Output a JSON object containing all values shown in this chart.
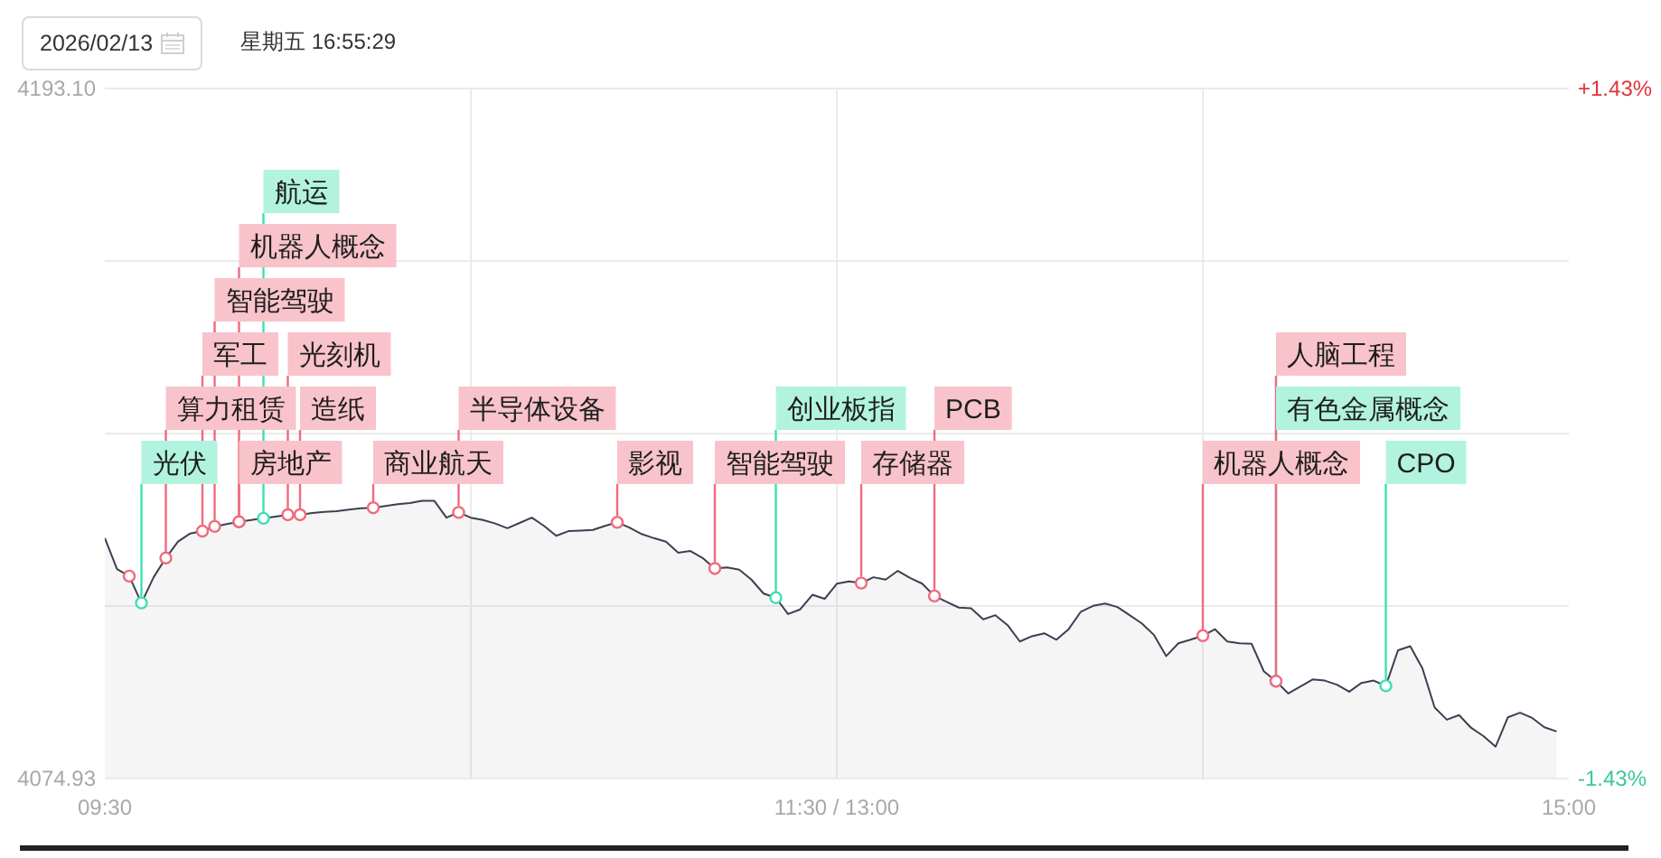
{
  "chart_data": {
    "type": "area",
    "annotations": [
      "2026/02/13",
      "星期五 16:55:29"
    ],
    "categories": [
      "09:30",
      null,
      null,
      null,
      null,
      null,
      null,
      null,
      null,
      null,
      null,
      null,
      null,
      null,
      null,
      null,
      null,
      null,
      null,
      null,
      null,
      null,
      null,
      null,
      null,
      null,
      null,
      null,
      null,
      null,
      null,
      null,
      null,
      null,
      null,
      null,
      null,
      null,
      null,
      null,
      null,
      null,
      null,
      null,
      null,
      null,
      null,
      null,
      null,
      null,
      null,
      null,
      null,
      null,
      null,
      null,
      null,
      null,
      null,
      null,
      "11:30 / 13:00",
      null,
      null,
      null,
      null,
      null,
      null,
      null,
      null,
      null,
      null,
      null,
      null,
      null,
      null,
      null,
      null,
      null,
      null,
      null,
      null,
      null,
      null,
      null,
      null,
      null,
      null,
      null,
      null,
      null,
      null,
      null,
      null,
      null,
      null,
      null,
      null,
      null,
      null,
      null,
      null,
      null,
      null,
      null,
      null,
      null,
      null,
      null,
      null,
      null,
      null,
      null,
      null,
      null,
      null,
      null,
      null,
      null,
      null,
      null,
      "15:00"
    ],
    "ylim": [
      4074.93,
      4193.1
    ],
    "yticks": [
      {
        "value": 4074.93,
        "label": "4074.93"
      },
      {
        "value": 4104.47,
        "label": null
      },
      {
        "value": 4134.02,
        "label": null
      },
      {
        "value": 4163.56,
        "label": null
      },
      {
        "value": 4193.1,
        "label": "4193.10"
      }
    ],
    "y2lim": [
      -1.43,
      1.43
    ],
    "y2ticks": [
      {
        "value": -1.43,
        "label": "-1.43%"
      },
      {
        "value": 1.43,
        "label": "+1.43%"
      }
    ],
    "grid": true,
    "series": [
      {
        "color": "#3b4050",
        "values": [
          4116.1,
          4110.8,
          4109.6,
          4105.0,
          4109.4,
          4112.7,
          4115.5,
          4116.9,
          4117.3,
          4118.1,
          4118.5,
          4118.9,
          4119.2,
          4119.5,
          4119.8,
          4120.1,
          4120.1,
          4120.4,
          4120.6,
          4120.7,
          4121.0,
          4121.2,
          4121.3,
          4121.6,
          4121.9,
          4122.1,
          4122.5,
          4122.5,
          4119.6,
          4120.5,
          4119.6,
          4119.2,
          4118.6,
          4117.8,
          4118.7,
          4119.6,
          4118.2,
          4116.5,
          4117.3,
          4117.4,
          4117.5,
          4118.2,
          4118.8,
          4117.9,
          4116.8,
          4116.1,
          4115.5,
          4113.6,
          4113.9,
          4112.7,
          4110.9,
          4111.1,
          4110.7,
          4109.0,
          4106.6,
          4105.9,
          4103.1,
          4103.9,
          4106.4,
          4105.7,
          4108.3,
          4108.7,
          4108.4,
          4109.4,
          4109.0,
          4110.5,
          4109.3,
          4108.3,
          4106.2,
          4105.2,
          4104.2,
          4104.1,
          4102.2,
          4102.9,
          4101.2,
          4098.4,
          4099.3,
          4099.8,
          4098.7,
          4100.5,
          4103.5,
          4104.5,
          4104.9,
          4104.3,
          4102.9,
          4101.5,
          4099.5,
          4095.9,
          4098.1,
          4098.7,
          4099.4,
          4100.5,
          4098.4,
          4098.1,
          4098.0,
          4093.3,
          4091.6,
          4089.5,
          4090.7,
          4091.9,
          4091.7,
          4091.0,
          4089.8,
          4091.3,
          4091.7,
          4090.8,
          4096.9,
          4097.6,
          4093.8,
          4087.1,
          4085.0,
          4085.8,
          4083.6,
          4082.2,
          4080.4,
          4085.4,
          4086.2,
          4085.3,
          4083.7,
          4083.0,
          null
        ]
      },
      {
        "type": "scatter",
        "color": "#3ee0b0",
        "marker": "circle",
        "values": [
          null,
          null,
          null,
          4105.0,
          null,
          null,
          null,
          null,
          null,
          null,
          null,
          null,
          null,
          4119.5,
          null,
          null,
          null,
          null,
          null,
          null,
          null,
          null,
          null,
          null,
          null,
          null,
          null,
          null,
          null,
          null,
          null,
          null,
          null,
          null,
          null,
          null,
          null,
          null,
          null,
          null,
          null,
          null,
          null,
          null,
          null,
          null,
          null,
          null,
          null,
          null,
          null,
          null,
          null,
          null,
          null,
          4105.9,
          null,
          null,
          null,
          null,
          null,
          null,
          null,
          null,
          null,
          null,
          null,
          null,
          null,
          null,
          null,
          null,
          null,
          null,
          null,
          null,
          null,
          null,
          null,
          null,
          null,
          null,
          null,
          null,
          null,
          null,
          null,
          null,
          null,
          null,
          null,
          null,
          null,
          null,
          null,
          null,
          4091.6,
          null,
          null,
          null,
          null,
          null,
          null,
          null,
          null,
          4090.8,
          null,
          null,
          null,
          null,
          null,
          null,
          null,
          null,
          null,
          null,
          null,
          null,
          null,
          null,
          null
        ],
        "value_labels": [
          null,
          null,
          null,
          "光伏",
          null,
          null,
          null,
          null,
          null,
          null,
          null,
          null,
          null,
          "航运",
          null,
          null,
          null,
          null,
          null,
          null,
          null,
          null,
          null,
          null,
          null,
          null,
          null,
          null,
          null,
          null,
          null,
          null,
          null,
          null,
          null,
          null,
          null,
          null,
          null,
          null,
          null,
          null,
          null,
          null,
          null,
          null,
          null,
          null,
          null,
          null,
          null,
          null,
          null,
          null,
          null,
          "创业板指",
          null,
          null,
          null,
          null,
          null,
          null,
          null,
          null,
          null,
          null,
          null,
          null,
          null,
          null,
          null,
          null,
          null,
          null,
          null,
          null,
          null,
          null,
          null,
          null,
          null,
          null,
          null,
          null,
          null,
          null,
          null,
          null,
          null,
          null,
          null,
          null,
          null,
          null,
          null,
          null,
          "有色金属概念",
          null,
          null,
          null,
          null,
          null,
          null,
          null,
          null,
          "CPO",
          null,
          null,
          null,
          null,
          null,
          null,
          null,
          null,
          null,
          null,
          null,
          null,
          null,
          null,
          null
        ]
      },
      {
        "type": "scatter",
        "color": "#f06a7c",
        "marker": "circle",
        "values": [
          null,
          null,
          4109.6,
          null,
          null,
          4112.7,
          null,
          null,
          4117.3,
          4118.1,
          null,
          4118.9,
          null,
          null,
          null,
          4120.1,
          4120.1,
          null,
          null,
          null,
          null,
          null,
          4121.3,
          null,
          null,
          null,
          null,
          null,
          null,
          4120.5,
          null,
          null,
          null,
          null,
          null,
          null,
          null,
          null,
          null,
          null,
          null,
          null,
          4118.8,
          null,
          null,
          null,
          null,
          null,
          null,
          null,
          4110.9,
          null,
          null,
          null,
          null,
          null,
          null,
          null,
          null,
          null,
          null,
          null,
          4108.4,
          null,
          null,
          null,
          null,
          null,
          4106.2,
          null,
          null,
          null,
          null,
          null,
          null,
          null,
          null,
          null,
          null,
          null,
          null,
          null,
          null,
          null,
          null,
          null,
          null,
          null,
          null,
          null,
          4099.4,
          null,
          null,
          null,
          null,
          null,
          4091.6,
          null,
          null,
          null,
          null,
          null,
          null,
          null,
          null,
          null,
          null,
          null,
          null,
          null,
          null,
          null,
          null,
          null,
          null,
          null,
          null,
          null,
          null,
          null,
          null
        ],
        "value_labels": [
          null,
          null,
          null,
          null,
          null,
          "算力租赁",
          null,
          null,
          "军工",
          "智能驾驶",
          null,
          "房地产",
          null,
          null,
          null,
          "光刻机",
          "造纸",
          null,
          null,
          null,
          null,
          null,
          "商业航天",
          null,
          null,
          null,
          null,
          null,
          null,
          "半导体设备",
          null,
          null,
          null,
          null,
          null,
          null,
          null,
          null,
          null,
          null,
          null,
          null,
          "影视",
          null,
          null,
          null,
          null,
          null,
          null,
          null,
          "智能驾驶",
          null,
          null,
          null,
          null,
          null,
          null,
          null,
          null,
          null,
          null,
          null,
          "存储器",
          null,
          null,
          null,
          null,
          null,
          "PCB",
          null,
          null,
          null,
          null,
          null,
          null,
          null,
          null,
          null,
          null,
          null,
          null,
          null,
          null,
          null,
          null,
          null,
          null,
          null,
          null,
          null,
          "机器人概念",
          null,
          null,
          null,
          null,
          null,
          "人脑工程",
          null,
          null,
          null,
          null,
          null,
          null,
          null,
          null,
          null,
          null,
          null,
          null,
          null,
          null,
          null,
          null,
          null,
          null,
          null,
          null,
          null,
          null,
          null,
          null
        ]
      },
      {
        "type": "scatter",
        "color": "#f06a7c",
        "marker": "circle",
        "values": [
          null,
          null,
          null,
          null,
          null,
          null,
          null,
          null,
          null,
          null,
          null,
          4118.9,
          null,
          null,
          null,
          null,
          null,
          null,
          null,
          null,
          null,
          null,
          null,
          null,
          null,
          null,
          null,
          null,
          null,
          null,
          null,
          null,
          null,
          null,
          null,
          null,
          null,
          null,
          null,
          null,
          null,
          null,
          null,
          null,
          null,
          null,
          null,
          null,
          null,
          null,
          null,
          null,
          null,
          null,
          null,
          null,
          null,
          null,
          null,
          null,
          null,
          null,
          null,
          null,
          null,
          null,
          null,
          null,
          null,
          null,
          null,
          null,
          null,
          null,
          null,
          null,
          null,
          null,
          null,
          null,
          null,
          null,
          null,
          null,
          null,
          null,
          null,
          null,
          null,
          null,
          null,
          null,
          null,
          null,
          null,
          null,
          null,
          null,
          null,
          null,
          null,
          null,
          null,
          null,
          null,
          null,
          null,
          null,
          null,
          null,
          null,
          null,
          null,
          null,
          null,
          null,
          null,
          null,
          null,
          null,
          null
        ],
        "value_labels": [
          null,
          null,
          null,
          null,
          null,
          null,
          null,
          null,
          null,
          null,
          null,
          "机器人概念",
          null,
          null,
          null,
          null,
          null,
          null,
          null,
          null,
          null,
          null,
          null,
          null,
          null,
          null,
          null,
          null,
          null,
          null,
          null,
          null,
          null,
          null,
          null,
          null,
          null,
          null,
          null,
          null,
          null,
          null,
          null,
          null,
          null,
          null,
          null,
          null,
          null,
          null,
          null,
          null,
          null,
          null,
          null,
          null,
          null,
          null,
          null,
          null,
          null,
          null,
          null,
          null,
          null,
          null,
          null,
          null,
          null,
          null,
          null,
          null,
          null,
          null,
          null,
          null,
          null,
          null,
          null,
          null,
          null,
          null,
          null,
          null,
          null,
          null,
          null,
          null,
          null,
          null,
          null,
          null,
          null,
          null,
          null,
          null,
          null,
          null,
          null,
          null,
          null,
          null,
          null,
          null,
          null,
          null,
          null,
          null,
          null,
          null,
          null,
          null,
          null,
          null,
          null,
          null,
          null,
          null,
          null,
          null,
          null
        ]
      }
    ]
  }
}
